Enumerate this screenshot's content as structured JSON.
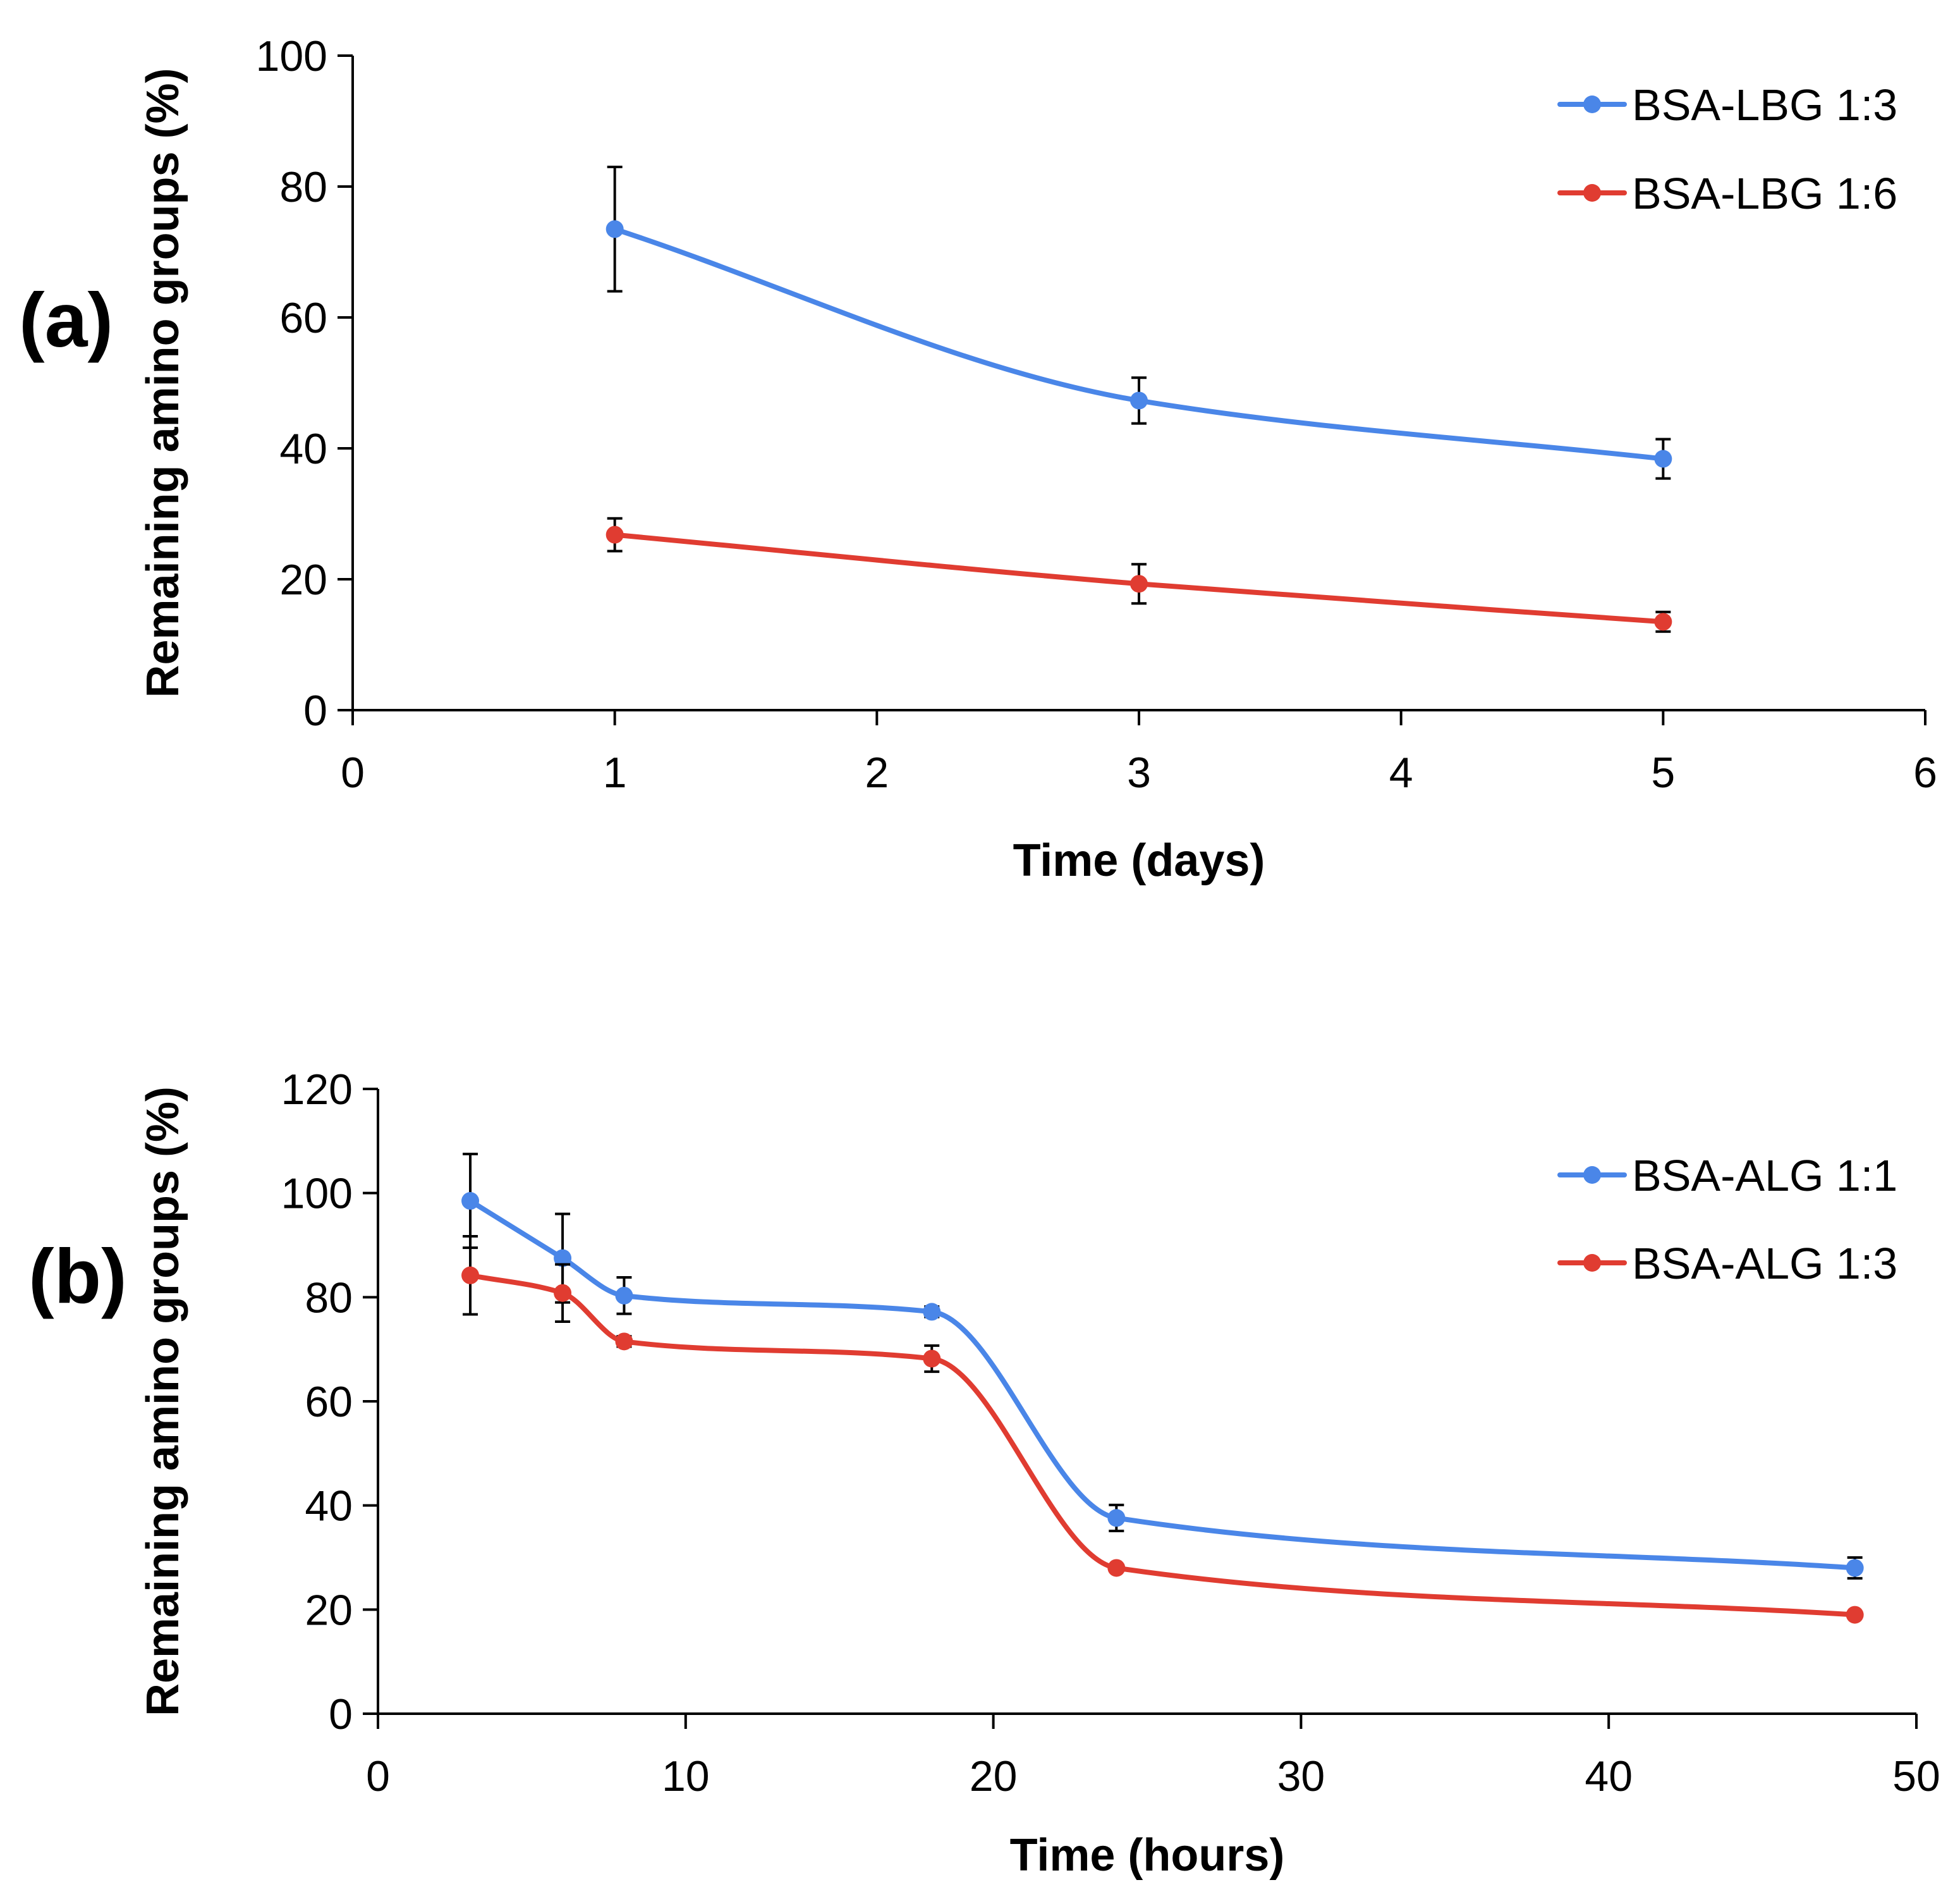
{
  "chart_data": [
    {
      "type": "line",
      "panel_label": "(a)",
      "title": "",
      "xlabel": "Time (days)",
      "ylabel": "Remaining amino groups (%)",
      "xlim": [
        0,
        6
      ],
      "ylim": [
        0,
        100
      ],
      "xticks": [
        0,
        1,
        2,
        3,
        4,
        5,
        6
      ],
      "yticks": [
        0,
        20,
        40,
        60,
        80,
        100
      ],
      "x_tick_labels": [
        "0",
        "1",
        "2",
        "3",
        "4",
        "5",
        "6"
      ],
      "y_tick_labels": [
        "0",
        "20",
        "40",
        "60",
        "80",
        "100"
      ],
      "grid": false,
      "legend_position": "top-right",
      "series": [
        {
          "name": "BSA-LBG 1:3",
          "color": "#4a86e8",
          "x": [
            1,
            3,
            5
          ],
          "y": [
            73.5,
            47.3,
            38.4
          ],
          "error": [
            9.5,
            3.5,
            3.0
          ]
        },
        {
          "name": "BSA-LBG 1:6",
          "color": "#e03c31",
          "x": [
            1,
            3,
            5
          ],
          "y": [
            26.8,
            19.3,
            13.5
          ],
          "error": [
            2.5,
            3.0,
            1.5
          ]
        }
      ]
    },
    {
      "type": "line",
      "panel_label": "(b)",
      "title": "",
      "xlabel": "Time (hours)",
      "ylabel": "Remaining amino groups (%)",
      "xlim": [
        0,
        50
      ],
      "ylim": [
        0,
        120
      ],
      "xticks": [
        0,
        10,
        20,
        30,
        40,
        50
      ],
      "yticks": [
        0,
        20,
        40,
        60,
        80,
        100,
        120
      ],
      "x_tick_labels": [
        "0",
        "10",
        "20",
        "30",
        "40",
        "50"
      ],
      "y_tick_labels": [
        "0",
        "20",
        "40",
        "60",
        "80",
        "100",
        "120"
      ],
      "grid": false,
      "legend_position": "top-right",
      "series": [
        {
          "name": "BSA-ALG 1:1",
          "color": "#4a86e8",
          "x": [
            3,
            6,
            8,
            18,
            24,
            48
          ],
          "y": [
            98.5,
            87.5,
            80.3,
            77.2,
            37.6,
            28.0
          ],
          "error": [
            9.0,
            8.5,
            3.5,
            1.0,
            2.5,
            2.0
          ]
        },
        {
          "name": "BSA-ALG 1:3",
          "color": "#e03c31",
          "x": [
            3,
            6,
            8,
            18,
            24,
            48
          ],
          "y": [
            84.2,
            80.8,
            71.5,
            68.2,
            28.0,
            19.0
          ],
          "error": [
            7.5,
            5.5,
            1.0,
            2.5,
            0.5,
            0.5
          ]
        }
      ]
    }
  ]
}
